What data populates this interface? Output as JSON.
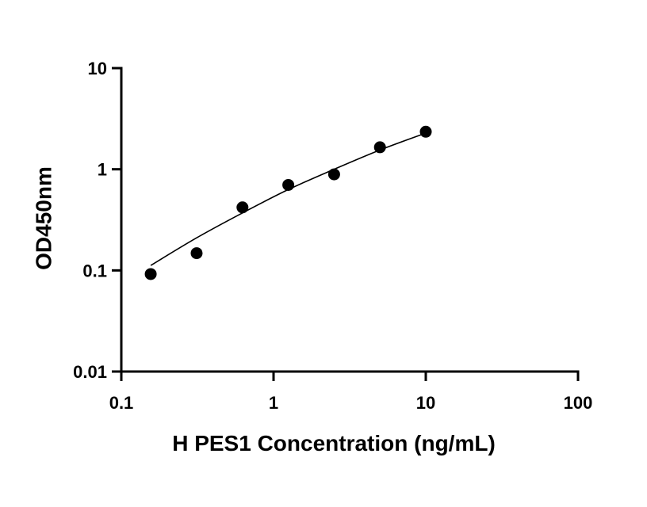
{
  "chart_data": {
    "type": "scatter",
    "title": "",
    "xlabel": "H PES1 Concentration (ng/mL)",
    "ylabel": "OD450nm",
    "xscale": "log",
    "yscale": "log",
    "xlim": [
      0.1,
      100
    ],
    "ylim": [
      0.01,
      10
    ],
    "x_ticks": [
      0.1,
      1,
      10,
      100
    ],
    "x_tick_labels": [
      "0.1",
      "1",
      "10",
      "100"
    ],
    "y_ticks": [
      0.01,
      0.1,
      1,
      10
    ],
    "y_tick_labels": [
      "0.01",
      "0.1",
      "1",
      "10"
    ],
    "grid": false,
    "legend": "none",
    "series": [
      {
        "x": [
          0.156,
          0.3125,
          0.625,
          1.25,
          2.5,
          5,
          10
        ],
        "y": [
          0.092,
          0.148,
          0.42,
          0.7,
          0.89,
          1.65,
          2.35
        ]
      }
    ],
    "fit_curve": {
      "x": [
        0.156,
        0.3125,
        0.625,
        1.25,
        2.5,
        5,
        10
      ],
      "y": [
        0.112,
        0.21,
        0.37,
        0.63,
        1.0,
        1.55,
        2.28
      ]
    },
    "colors": {
      "points": "#000000",
      "curve": "#000000",
      "axes": "#000000"
    }
  }
}
